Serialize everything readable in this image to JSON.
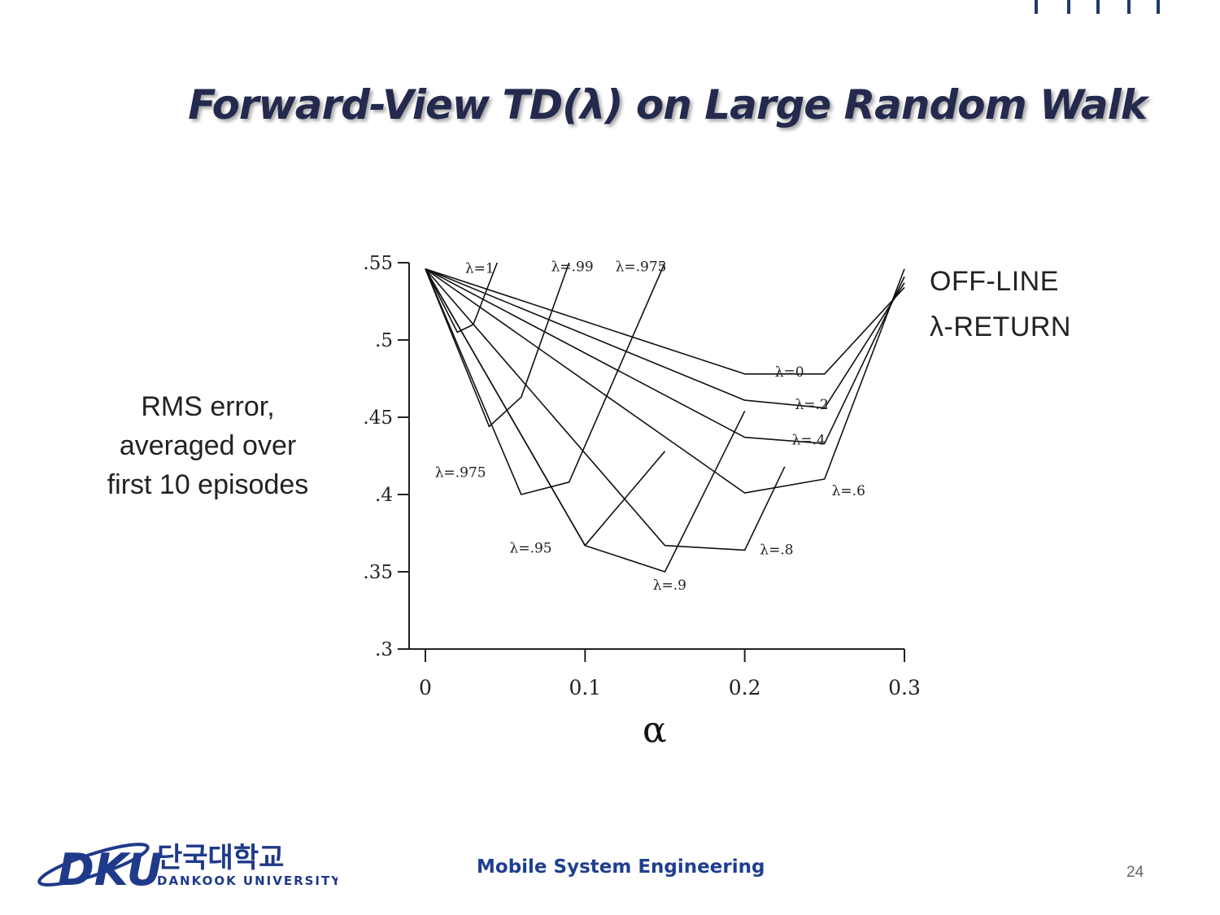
{
  "slide": {
    "title": "Forward-View TD(λ) on Large Random Walk",
    "footer_text": "Mobile System Engineering",
    "page_number": "24",
    "logo": {
      "mark": "DKU",
      "korean": "단국대학교",
      "english": "DANKOOK UNIVERSITY",
      "color": "#1f3a8a"
    }
  },
  "chart_data": {
    "type": "line",
    "title": "",
    "xlabel": "α",
    "ylabel": [
      "RMS error,",
      "averaged over",
      "first 10 episodes"
    ],
    "legend_title": [
      "OFF-LINE",
      "λ-RETURN"
    ],
    "xlim": [
      0,
      0.3
    ],
    "ylim": [
      0.3,
      0.55
    ],
    "x_ticks": [
      "0",
      "0.1",
      "0.2",
      "0.3"
    ],
    "y_ticks": [
      ".3",
      ".35",
      ".4",
      ".45",
      ".5",
      ".55"
    ],
    "series": [
      {
        "name": "λ=0",
        "x": [
          0,
          0.2,
          0.25,
          0.3
        ],
        "y": [
          0.546,
          0.478,
          0.478,
          0.534
        ]
      },
      {
        "name": "λ=.2",
        "x": [
          0,
          0.2,
          0.25,
          0.3
        ],
        "y": [
          0.546,
          0.461,
          0.456,
          0.537
        ]
      },
      {
        "name": "λ=.4",
        "x": [
          0,
          0.2,
          0.25,
          0.3
        ],
        "y": [
          0.546,
          0.437,
          0.433,
          0.541
        ]
      },
      {
        "name": "λ=.6",
        "x": [
          0,
          0.2,
          0.25,
          0.3
        ],
        "y": [
          0.546,
          0.401,
          0.41,
          0.546
        ]
      },
      {
        "name": "λ=.8",
        "x": [
          0,
          0.15,
          0.2,
          0.225
        ],
        "y": [
          0.546,
          0.367,
          0.364,
          0.418
        ]
      },
      {
        "name": "λ=.9",
        "x": [
          0,
          0.1,
          0.15,
          0.2
        ],
        "y": [
          0.546,
          0.367,
          0.35,
          0.454
        ]
      },
      {
        "name": "λ=.95",
        "x": [
          0,
          0.1,
          0.15
        ],
        "y": [
          0.546,
          0.367,
          0.428
        ]
      },
      {
        "name": "λ=.975",
        "x": [
          0,
          0.06,
          0.09,
          0.15
        ],
        "y": [
          0.546,
          0.4,
          0.408,
          0.55
        ]
      },
      {
        "name": "λ=.99",
        "x": [
          0,
          0.04,
          0.06,
          0.09
        ],
        "y": [
          0.546,
          0.444,
          0.463,
          0.55
        ]
      },
      {
        "name": "λ=1",
        "x": [
          0,
          0.02,
          0.03,
          0.045
        ],
        "y": [
          0.546,
          0.505,
          0.51,
          0.55
        ]
      }
    ],
    "curve_labels": [
      {
        "text": "λ=1",
        "x": 0.034,
        "y": 0.546
      },
      {
        "text": "λ=.99",
        "x": 0.092,
        "y": 0.547
      },
      {
        "text": "λ=.975",
        "x": 0.135,
        "y": 0.547
      },
      {
        "text": "λ=0",
        "x": 0.228,
        "y": 0.479
      },
      {
        "text": "λ=.2",
        "x": 0.242,
        "y": 0.458
      },
      {
        "text": "λ=.4",
        "x": 0.24,
        "y": 0.435
      },
      {
        "text": "λ=.6",
        "x": 0.265,
        "y": 0.402
      },
      {
        "text": "λ=.8",
        "x": 0.22,
        "y": 0.364
      },
      {
        "text": "λ=.9",
        "x": 0.153,
        "y": 0.341
      },
      {
        "text": "λ=.95",
        "x": 0.066,
        "y": 0.365
      },
      {
        "text": "λ=.975",
        "x": 0.022,
        "y": 0.414
      }
    ],
    "grid": false,
    "legend_placement": "top-right",
    "line_color": "#111111"
  }
}
